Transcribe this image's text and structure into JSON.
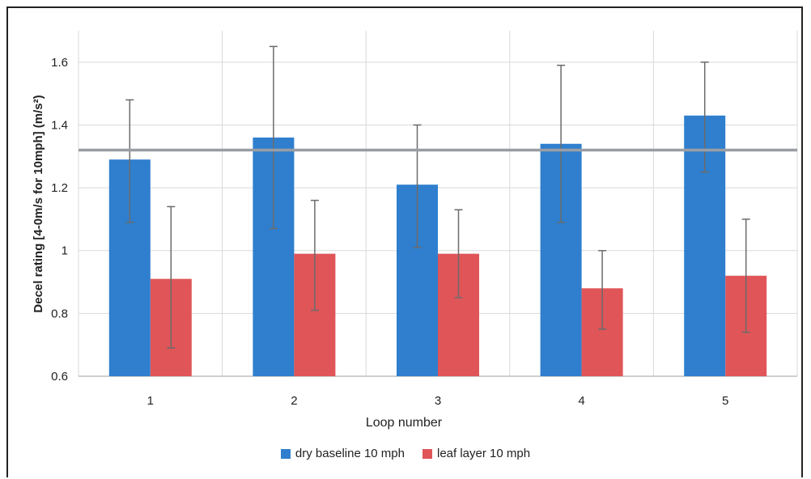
{
  "chart_data": {
    "type": "bar",
    "categories": [
      "1",
      "2",
      "3",
      "4",
      "5"
    ],
    "series": [
      {
        "name": "dry baseline 10 mph",
        "color": "#2f7fce",
        "values": [
          1.29,
          1.36,
          1.21,
          1.34,
          1.43
        ],
        "error_low": [
          1.09,
          1.07,
          1.01,
          1.09,
          1.25
        ],
        "error_high": [
          1.48,
          1.65,
          1.4,
          1.59,
          1.6
        ]
      },
      {
        "name": "leaf layer 10 mph",
        "color": "#e05558",
        "values": [
          0.91,
          0.99,
          0.99,
          0.88,
          0.92
        ],
        "error_low": [
          0.69,
          0.81,
          0.85,
          0.75,
          0.74
        ],
        "error_high": [
          1.14,
          1.16,
          1.13,
          1.0,
          1.1
        ]
      }
    ],
    "reference_line": {
      "value": 1.32,
      "color": "#9a9ea4"
    },
    "xlabel": "Loop number",
    "ylabel": "Decel rating [4-0m/s for 10mph] (m/s²)",
    "ylim": [
      0.6,
      1.7
    ],
    "yticks": [
      0.6,
      0.8,
      1,
      1.2,
      1.4,
      1.6
    ],
    "ytick_labels": [
      "0.6",
      "0.8",
      "1",
      "1.2",
      "1.4",
      "1.6"
    ],
    "grid": true,
    "legend_position": "bottom"
  }
}
